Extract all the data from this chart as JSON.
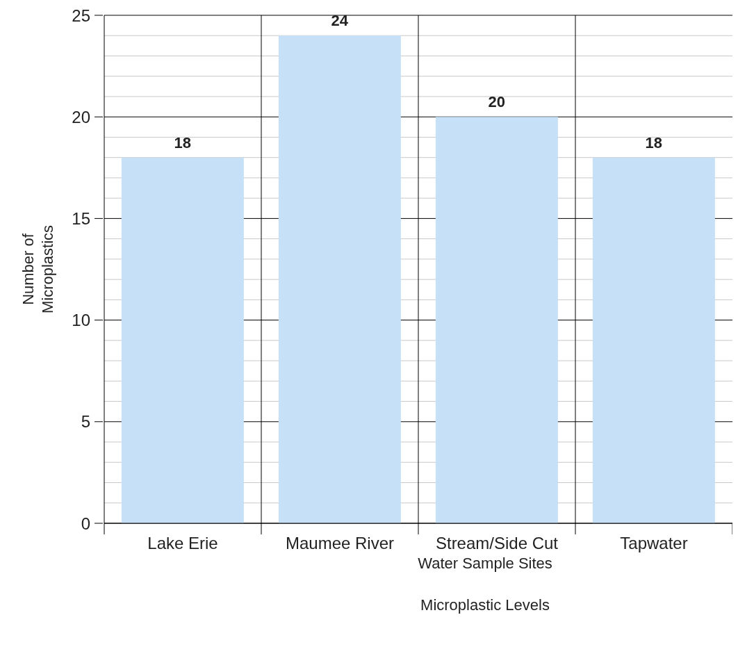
{
  "chart_data": {
    "type": "bar",
    "title": "Microplastic Levels",
    "xlabel": "Water Sample Sites",
    "ylabel": "Number of Microplastics",
    "categories": [
      "Lake Erie",
      "Maumee River",
      "Stream/Side Cut",
      "Tapwater"
    ],
    "values": [
      18,
      24,
      20,
      18
    ],
    "color": "#c5e0f7",
    "data_labels": true,
    "grid": true,
    "legend": false,
    "ylim": [
      0,
      25
    ],
    "yticks": [
      0,
      {
        "value": 1,
        "label": null
      },
      {
        "value": 2,
        "label": null
      },
      {
        "value": 3,
        "label": null
      },
      {
        "value": 4,
        "label": null
      },
      5,
      {
        "value": 6,
        "label": null
      },
      {
        "value": 7,
        "label": null
      },
      {
        "value": 8,
        "label": null
      },
      {
        "value": 9,
        "label": null
      },
      10,
      {
        "value": 11,
        "label": null
      },
      {
        "value": 12,
        "label": null
      },
      {
        "value": 13,
        "label": null
      },
      {
        "value": 14,
        "label": null
      },
      15,
      {
        "value": 16,
        "label": null
      },
      {
        "value": 17,
        "label": null
      },
      {
        "value": 18,
        "label": null
      },
      {
        "value": 19,
        "label": null
      },
      20,
      {
        "value": 21,
        "label": null
      },
      {
        "value": 22,
        "label": null
      },
      {
        "value": 23,
        "label": null
      },
      {
        "value": 24,
        "label": null
      },
      25
    ]
  }
}
